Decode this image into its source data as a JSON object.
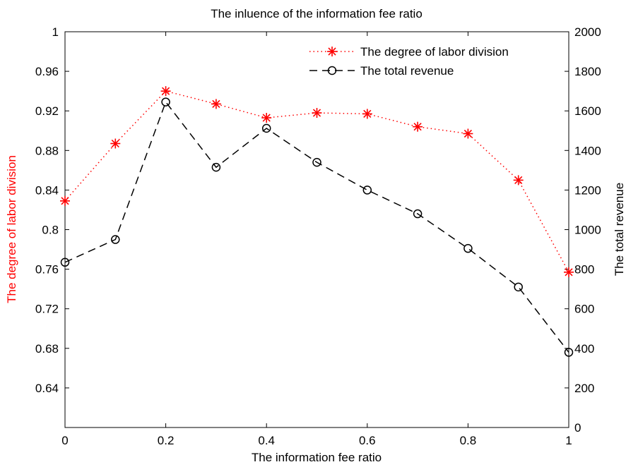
{
  "chart_data": {
    "type": "line",
    "title": "The inluence of the information fee ratio",
    "xlabel": "The information fee ratio",
    "ylabel_left": "The degree of  labor division",
    "ylabel_right": "The total revenue",
    "x": [
      0,
      0.1,
      0.2,
      0.3,
      0.4,
      0.5,
      0.6,
      0.7,
      0.8,
      0.9,
      1.0
    ],
    "xlim": [
      0,
      1
    ],
    "ylim_left": [
      0.6,
      1.0
    ],
    "ylim_right": [
      0,
      2000
    ],
    "xticks": [
      "0",
      "0.2",
      "0.4",
      "0.6",
      "0.8",
      "1"
    ],
    "yticks_left": [
      "",
      "0.64",
      "0.68",
      "0.72",
      "0.76",
      "0.8",
      "0.84",
      "0.88",
      "0.92",
      "0.96",
      "1"
    ],
    "yticks_right": [
      "0",
      "200",
      "400",
      "600",
      "800",
      "1000",
      "1200",
      "1400",
      "1600",
      "1800",
      "2000"
    ],
    "grid": false,
    "legend_position": "top-right",
    "series": [
      {
        "name": "The degree of  labor division",
        "axis": "left",
        "color": "#ff0000",
        "line_style": "dotted",
        "marker": "asterisk",
        "values": [
          0.829,
          0.887,
          0.94,
          0.927,
          0.913,
          0.918,
          0.917,
          0.904,
          0.897,
          0.85,
          0.757
        ]
      },
      {
        "name": "The total revenue",
        "axis": "right",
        "color": "#000000",
        "line_style": "dashed",
        "marker": "circle",
        "values": [
          835,
          950,
          1645,
          1315,
          1512,
          1340,
          1200,
          1080,
          905,
          710,
          380
        ]
      }
    ]
  }
}
